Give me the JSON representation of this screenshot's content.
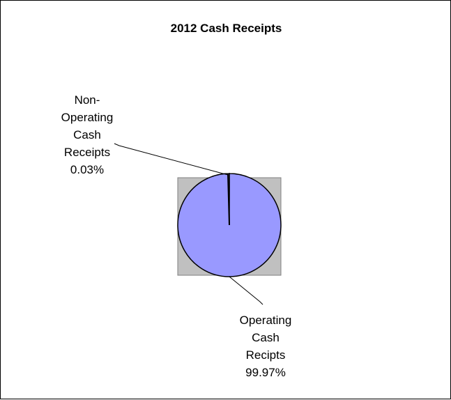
{
  "chart_data": {
    "type": "pie",
    "title": "2012 Cash Receipts",
    "slices": [
      {
        "label_lines": [
          "Non-",
          "Operating",
          "Cash",
          "Receipts"
        ],
        "percent_label": "0.03%",
        "value": 0.03
      },
      {
        "label_lines": [
          "Operating",
          "Cash",
          "Recipts"
        ],
        "percent_label": "99.97%",
        "value": 99.97
      }
    ],
    "colors": {
      "plot_area": "#c0c0c0",
      "pie_fill": "#9999ff",
      "outline": "#000000"
    },
    "legend": "none"
  }
}
